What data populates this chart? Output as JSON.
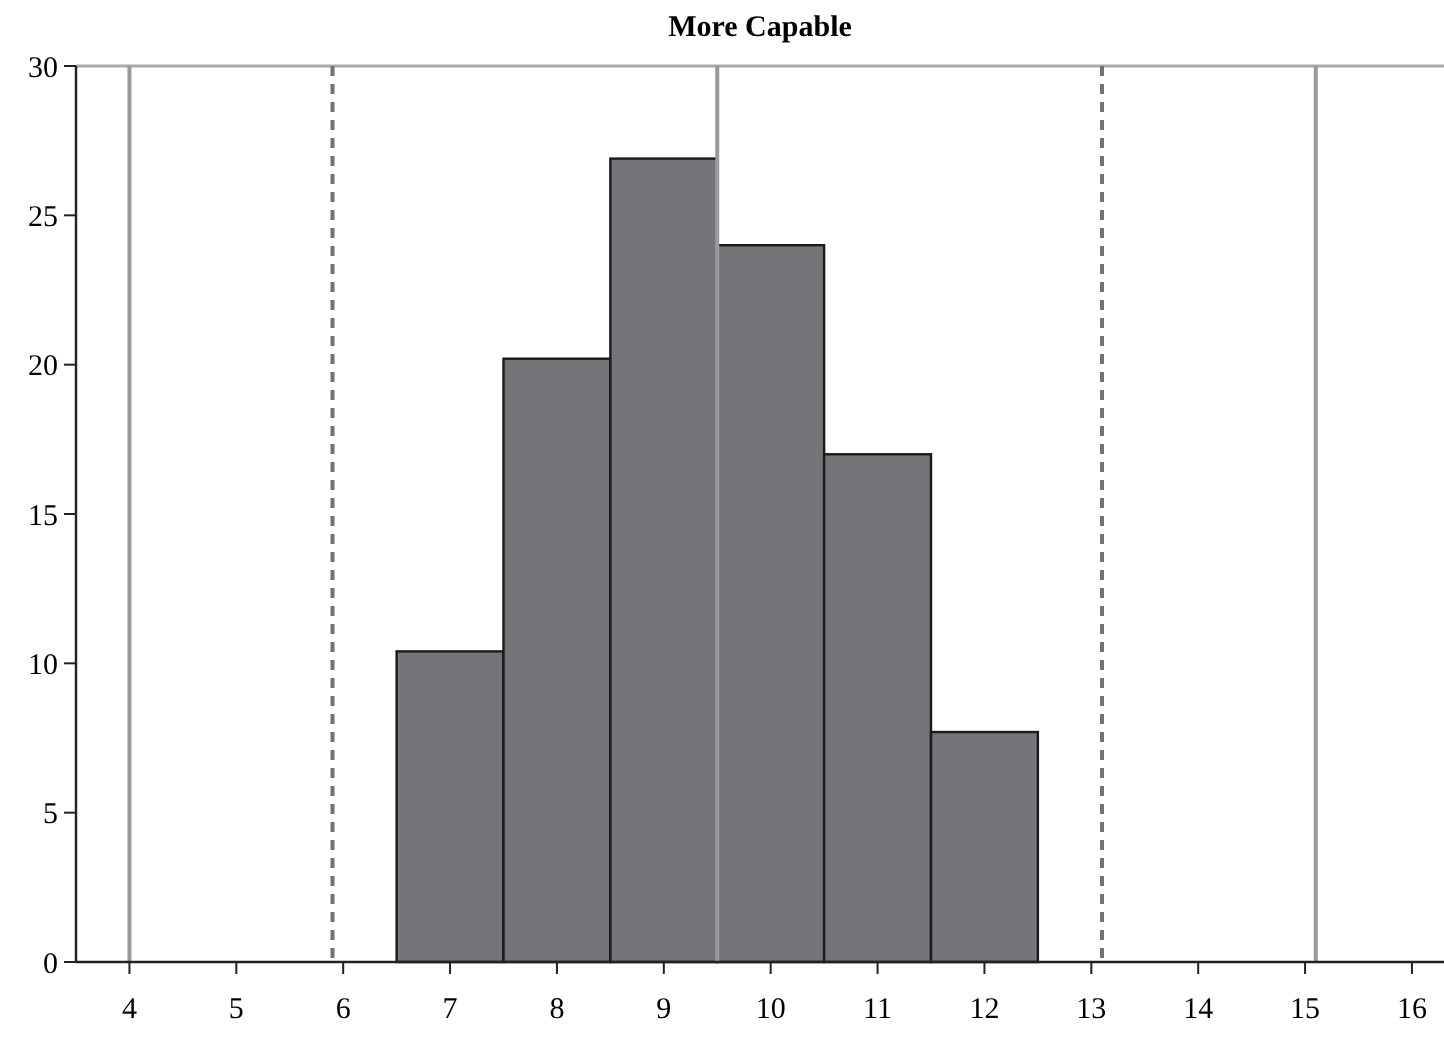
{
  "chart_data": {
    "type": "histogram",
    "title": "More Capable",
    "bins": [
      6.5,
      7.5,
      8.5,
      9.5,
      10.5,
      11.5,
      12.5
    ],
    "values": [
      10.4,
      20.2,
      26.9,
      24.0,
      17.0,
      7.7
    ],
    "color": "#747579",
    "xlim": [
      3.5,
      16.3
    ],
    "xticks": [
      4,
      5,
      6,
      7,
      8,
      9,
      10,
      11,
      12,
      13,
      14,
      15,
      16
    ],
    "ylim": [
      0,
      30
    ],
    "yticks": [
      0,
      5,
      10,
      15,
      20,
      25,
      30
    ],
    "grid": false,
    "ref_lines": [
      {
        "axis": "x",
        "value": 4,
        "color": "#9a9a9a",
        "line_style": "solid"
      },
      {
        "axis": "x",
        "value": 5.9,
        "color": "#737373",
        "line_style": "dashed"
      },
      {
        "axis": "x",
        "value": 9.5,
        "color": "#9a9a9a",
        "line_style": "solid"
      },
      {
        "axis": "x",
        "value": 13.1,
        "color": "#737373",
        "line_style": "dashed"
      },
      {
        "axis": "x",
        "value": 15.1,
        "color": "#9a9a9a",
        "line_style": "solid"
      }
    ]
  }
}
